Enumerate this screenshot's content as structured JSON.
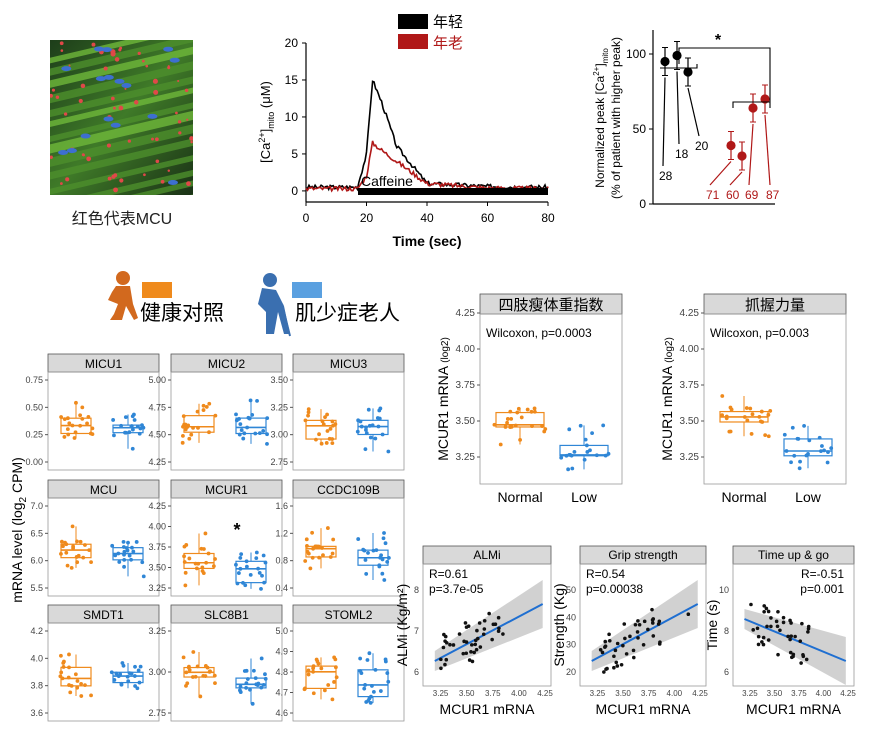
{
  "colors": {
    "healthy": "#ef8a1c",
    "elder": "#2f86d6",
    "young": "#000000",
    "old": "#b01818",
    "fit": "#1f6fd1",
    "band": "#bdbdbd",
    "strip": "#d9d9d9"
  },
  "micrograph": {
    "caption": "红色代表MCU"
  },
  "trace": {
    "legend": [
      "年轻",
      "年老"
    ],
    "ylabel_main": "[Ca",
    "ylabel_sup": "2+",
    "ylabel_close": "]",
    "ylabel_sub": "mito",
    "ylabel_unit": " (μM)",
    "xlabel": "Time (sec)",
    "bar_label": "Caffeine",
    "xticks": [
      "0",
      "20",
      "40",
      "60",
      "80"
    ],
    "yticks": [
      "0",
      "5",
      "10",
      "15",
      "20"
    ]
  },
  "peak": {
    "ylabel_line1_main": "Normalized peak [Ca",
    "ylabel_line1_sup": "2+",
    "ylabel_line1_close": "]",
    "ylabel_line1_sub": "mito",
    "ylabel_line2": "(% of patient with higher peak)",
    "yticks": [
      "0",
      "50",
      "100"
    ],
    "star": "*",
    "young_ages": [
      "28",
      "18",
      "20"
    ],
    "old_ages": [
      "71",
      "60",
      "69",
      "87"
    ]
  },
  "legend_people": {
    "healthy_label": "健康对照",
    "elder_label": "肌少症老人"
  },
  "shared_ylabel": "mRNA level (log",
  "shared_ylabel_sub": "2",
  "shared_ylabel_end": " CPM)",
  "star": "*",
  "small_panels": [
    {
      "title": "MICU1",
      "yticks": [
        "0.00",
        "0.25",
        "0.50",
        "0.75"
      ],
      "sig": ""
    },
    {
      "title": "MICU2",
      "yticks": [
        "4.25",
        "4.50",
        "4.75",
        "5.00"
      ],
      "sig": ""
    },
    {
      "title": "MICU3",
      "yticks": [
        "2.75",
        "3.00",
        "3.25",
        "3.50"
      ],
      "sig": ""
    },
    {
      "title": "MCU",
      "yticks": [
        "5.5",
        "6.0",
        "6.5",
        "7.0"
      ],
      "sig": ""
    },
    {
      "title": "MCUR1",
      "yticks": [
        "3.25",
        "3.50",
        "3.75",
        "4.00",
        "4.25"
      ],
      "sig": "*"
    },
    {
      "title": "CCDC109B",
      "yticks": [
        "0.4",
        "0.8",
        "1.2",
        "1.6"
      ],
      "sig": ""
    },
    {
      "title": "SMDT1",
      "yticks": [
        "3.6",
        "3.8",
        "4.0",
        "4.2"
      ],
      "sig": ""
    },
    {
      "title": "SLC8B1",
      "yticks": [
        "2.75",
        "3.00",
        "3.25"
      ],
      "sig": ""
    },
    {
      "title": "STOML2",
      "yticks": [
        "4.6",
        "4.7",
        "4.8",
        "4.9",
        "5.0"
      ],
      "sig": ""
    }
  ],
  "mid_panels": [
    {
      "title": "四肢瘦体重指数",
      "stat": "Wilcoxon, p=0.0003",
      "ylabel_main": "MCUR1 mRNA ",
      "ylabel_sub": "(log2)",
      "xcats": [
        "Normal",
        "Low"
      ],
      "yticks": [
        "3.25",
        "3.50",
        "3.75",
        "4.00",
        "4.25"
      ]
    },
    {
      "title": "抓握力量",
      "stat": "Wilcoxon, p=0.003",
      "ylabel_main": "MCUR1 mRNA ",
      "ylabel_sub": "(log2)",
      "xcats": [
        "Normal",
        "Low"
      ],
      "yticks": [
        "3.25",
        "3.50",
        "3.75",
        "4.00",
        "4.25"
      ]
    }
  ],
  "corr_panels": [
    {
      "title": "ALMi",
      "r": "R=0.61",
      "p": "p=3.7e-05",
      "ylabel": "ALMi (Kg/m²)",
      "xlabel": "MCUR1 mRNA",
      "yticks": [
        "6",
        "7",
        "8"
      ],
      "xticks": [
        "3.25",
        "3.50",
        "3.75",
        "4.00",
        "4.25"
      ]
    },
    {
      "title": "Grip strength",
      "r": "R=0.54",
      "p": "p=0.00038",
      "ylabel": "Strength (Kg)",
      "xlabel": "MCUR1 mRNA",
      "yticks": [
        "20",
        "30",
        "40",
        "50"
      ],
      "xticks": [
        "3.25",
        "3.50",
        "3.75",
        "4.00",
        "4.25"
      ]
    },
    {
      "title": "Time up & go",
      "r": "R=-0.51",
      "p": "p=0.001",
      "ylabel": "Time (s)",
      "xlabel": "MCUR1 mRNA",
      "yticks": [
        "6",
        "8",
        "10"
      ],
      "xticks": [
        "3.25",
        "3.50",
        "3.75",
        "4.00",
        "4.25"
      ]
    }
  ],
  "chart_data": [
    {
      "type": "line",
      "x": [
        0,
        10,
        17,
        20,
        22,
        25,
        30,
        40,
        60,
        80
      ],
      "series": [
        {
          "name": "年轻",
          "values": [
            0.5,
            0.5,
            0.5,
            5,
            15,
            12,
            6,
            1,
            0.6,
            0.5
          ]
        },
        {
          "name": "年老",
          "values": [
            0.3,
            0.3,
            0.3,
            2,
            6.5,
            5.5,
            4,
            1,
            0.4,
            0.3
          ]
        }
      ],
      "xlabel": "Time (sec)",
      "ylim": [
        0,
        20
      ],
      "xlim": [
        0,
        80
      ]
    },
    {
      "type": "scatter",
      "ylim": [
        0,
        100
      ],
      "series": [
        {
          "name": "年轻",
          "labels": [
            "28",
            "18",
            "20"
          ],
          "values": [
            95,
            99,
            88
          ]
        },
        {
          "name": "年老",
          "labels": [
            "71",
            "60",
            "69",
            "87"
          ],
          "values": [
            39,
            32,
            64,
            70
          ]
        }
      ]
    },
    {
      "type": "box",
      "title": "MCUR1",
      "ylim": [
        3.1,
        4.3
      ],
      "series": [
        {
          "name": "健康对照",
          "median": 3.5
        },
        {
          "name": "肌少症老人",
          "median": 3.3
        }
      ]
    },
    {
      "type": "scatter",
      "title": "ALMi",
      "xlabel": "MCUR1 mRNA",
      "ylabel": "ALMi (Kg/m²)",
      "xlim": [
        3.1,
        4.3
      ],
      "ylim": [
        5.5,
        9
      ]
    },
    {
      "type": "scatter",
      "title": "Grip strength",
      "xlabel": "MCUR1 mRNA",
      "ylabel": "Strength (Kg)",
      "xlim": [
        3.1,
        4.3
      ],
      "ylim": [
        18,
        56
      ]
    },
    {
      "type": "scatter",
      "title": "Time up & go",
      "xlabel": "MCUR1 mRNA",
      "ylabel": "Time (s)",
      "xlim": [
        3.1,
        4.3
      ],
      "ylim": [
        4.5,
        11
      ]
    }
  ]
}
